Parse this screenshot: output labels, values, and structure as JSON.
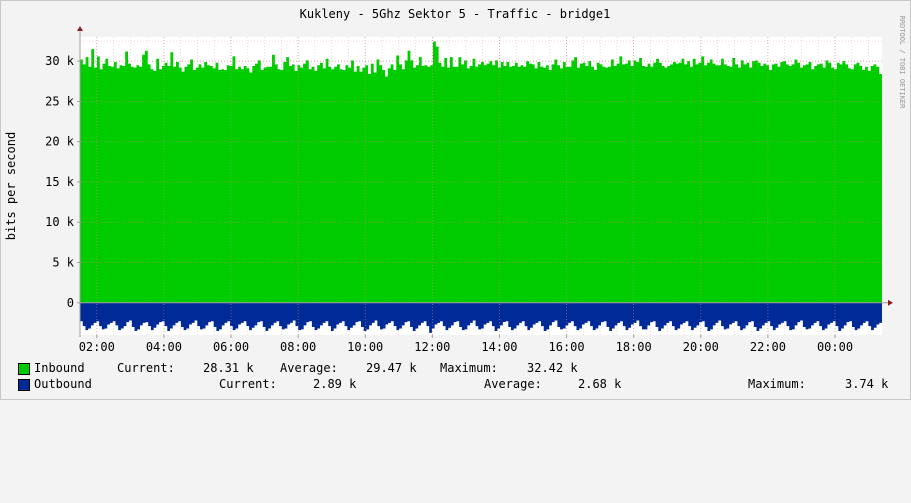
{
  "chart_data": {
    "type": "area",
    "title": "Kukleny - 5Ghz Sektor 5 - Traffic - bridge1",
    "ylabel": "bits per second",
    "watermark": "RRDTOOL / TOBI OETIKER",
    "ylim": [
      -4000,
      33000
    ],
    "yticks": [
      {
        "value": 30000,
        "label": "30 k"
      },
      {
        "value": 25000,
        "label": "25 k"
      },
      {
        "value": 20000,
        "label": "20 k"
      },
      {
        "value": 15000,
        "label": "15 k"
      },
      {
        "value": 10000,
        "label": "10 k"
      },
      {
        "value": 5000,
        "label": "5 k"
      },
      {
        "value": 0,
        "label": "0"
      }
    ],
    "xticks": [
      "02:00",
      "04:00",
      "06:00",
      "08:00",
      "10:00",
      "12:00",
      "14:00",
      "16:00",
      "18:00",
      "20:00",
      "22:00",
      "00:00"
    ],
    "xlim_hours": [
      1.5,
      25.4
    ],
    "grid": true,
    "colors": {
      "inbound": "#00cc00",
      "outbound": "#002a97",
      "grid": "#e6a0a0",
      "axis": "#a0a0a0",
      "arrow": "#8b1a1a"
    },
    "series": [
      {
        "name": "Inbound",
        "note": "approx 5-minute samples, bits per second",
        "values": [
          30200,
          29600,
          30500,
          29300,
          31500,
          29200,
          30600,
          29000,
          29700,
          30300,
          29400,
          29300,
          29900,
          29100,
          29500,
          29400,
          31200,
          29700,
          29300,
          29200,
          29500,
          29300,
          30800,
          31300,
          29600,
          29000,
          28800,
          30300,
          29000,
          29400,
          29800,
          29400,
          31100,
          29300,
          29900,
          29200,
          28700,
          29300,
          29600,
          30200,
          28900,
          29200,
          29600,
          29200,
          29900,
          29500,
          29400,
          29100,
          29800,
          28900,
          29000,
          28900,
          29500,
          29400,
          30600,
          29000,
          29300,
          29000,
          29400,
          29100,
          28600,
          29400,
          29700,
          30100,
          28900,
          29200,
          29300,
          29300,
          30800,
          29600,
          29000,
          28900,
          29900,
          30500,
          29400,
          29600,
          28800,
          29500,
          29200,
          29700,
          30100,
          29000,
          29300,
          28800,
          29500,
          29800,
          29100,
          30300,
          29300,
          29000,
          29300,
          29600,
          29000,
          28900,
          29500,
          29200,
          30100,
          28700,
          29400,
          28700,
          29200,
          29500,
          28400,
          29700,
          28600,
          30200,
          29500,
          28900,
          28100,
          29100,
          29600,
          28900,
          30700,
          29600,
          29000,
          30100,
          31300,
          30100,
          29200,
          29500,
          30500,
          29400,
          29500,
          29300,
          29500,
          32420,
          31800,
          29800,
          29300,
          30400,
          29200,
          30500,
          29300,
          29300,
          30500,
          29600,
          30100,
          29100,
          29400,
          30300,
          29300,
          29600,
          29900,
          29500,
          29700,
          30000,
          29500,
          30100,
          29200,
          29900,
          29400,
          29900,
          29300,
          29400,
          29800,
          29300,
          29500,
          29300,
          30000,
          29700,
          29600,
          29100,
          29900,
          29300,
          29200,
          29500,
          28900,
          29600,
          30200,
          29500,
          29100,
          29900,
          29300,
          29300,
          30100,
          30500,
          29200,
          29700,
          29800,
          29400,
          30000,
          29300,
          28900,
          29800,
          29600,
          29300,
          29200,
          29300,
          30200,
          29400,
          29700,
          30600,
          29600,
          29700,
          30100,
          29400,
          30100,
          29900,
          30400,
          29400,
          29300,
          29700,
          29300,
          29800,
          30300,
          29800,
          29400,
          29200,
          29400,
          29600,
          29900,
          29700,
          29800,
          30300,
          29600,
          30000,
          29300,
          30300,
          29600,
          29800,
          30600,
          29500,
          29800,
          30200,
          29700,
          29500,
          29500,
          30300,
          29600,
          29400,
          29300,
          30400,
          29600,
          29200,
          30100,
          29600,
          29800,
          29200,
          30000,
          30100,
          29800,
          29400,
          29700,
          29500,
          28900,
          29600,
          29700,
          29300,
          29900,
          30000,
          29600,
          29400,
          29600,
          30200,
          29800,
          29200,
          29500,
          29600,
          29900,
          29000,
          29400,
          29600,
          29700,
          29200,
          30100,
          29800,
          29200,
          29000,
          29800,
          29600,
          30000,
          29600,
          29100,
          29000,
          29600,
          29800,
          29400,
          28900,
          29300,
          28800,
          29400,
          29600,
          29300,
          28400
        ]
      },
      {
        "name": "Outbound",
        "note": "plotted below zero, bits per second",
        "values": [
          2300,
          2900,
          3400,
          3200,
          2800,
          2500,
          2300,
          2900,
          3300,
          3200,
          2700,
          2500,
          2300,
          2800,
          3400,
          3200,
          2900,
          2400,
          2200,
          3000,
          3500,
          3300,
          2800,
          2500,
          2400,
          2900,
          3400,
          3100,
          2700,
          2400,
          2300,
          2900,
          3500,
          3200,
          2800,
          2500,
          2300,
          3000,
          3400,
          3200,
          2700,
          2500,
          2200,
          2900,
          3300,
          3200,
          2800,
          2400,
          2300,
          3000,
          3500,
          3300,
          2800,
          2500,
          2300,
          2900,
          3400,
          3200,
          2700,
          2500,
          2300,
          2900,
          3400,
          3100,
          2800,
          2400,
          2300,
          3000,
          3500,
          3200,
          2800,
          2500,
          2300,
          2900,
          3300,
          3200,
          2700,
          2500,
          2200,
          2900,
          3400,
          3300,
          2800,
          2400,
          2300,
          3000,
          3400,
          3200,
          2800,
          2500,
          2300,
          2900,
          3500,
          3200,
          2700,
          2500,
          2300,
          2900,
          3400,
          3100,
          2800,
          2400,
          2300,
          3000,
          3500,
          3300,
          2800,
          2500,
          2200,
          2900,
          3300,
          3200,
          2700,
          2500,
          2300,
          2900,
          3400,
          3200,
          2800,
          2400,
          2300,
          3000,
          3500,
          3200,
          2800,
          2500,
          2300,
          2900,
          3740,
          3200,
          2700,
          2500,
          2300,
          2900,
          3400,
          3100,
          2800,
          2400,
          2300,
          3000,
          3400,
          3300,
          2800,
          2500,
          2200,
          2900,
          3300,
          3200,
          2700,
          2500,
          2300,
          2900,
          3500,
          3200,
          2800,
          2400,
          2300,
          3000,
          3400,
          3200,
          2800,
          2500,
          2300,
          2900,
          3400,
          3100,
          2700,
          2500,
          2300,
          2900,
          3500,
          3300,
          2800,
          2400,
          2200,
          3000,
          3300,
          3200,
          2800,
          2500,
          2300,
          2900,
          3400,
          3200,
          2700,
          2500,
          2300,
          2900,
          3400,
          3200,
          2800,
          2400,
          2300,
          3000,
          3500,
          3200,
          2800,
          2500,
          2300,
          2900,
          3400,
          3100,
          2700,
          2500,
          2200,
          2900,
          3300,
          3300,
          2800,
          2400,
          2300,
          3000,
          3500,
          3200,
          2800,
          2500,
          2300,
          2900,
          3400,
          3200,
          2700,
          2500,
          2300,
          2900,
          3400,
          3100,
          2800,
          2400,
          2300,
          3000,
          3500,
          3300,
          2800,
          2500,
          2200,
          2900,
          3300,
          3200,
          2700,
          2500,
          2300,
          2900,
          3400,
          3200,
          2800,
          2400,
          2300,
          3000,
          3500,
          3200,
          2800,
          2500,
          2300,
          2900,
          3400,
          3100,
          2700,
          2500,
          2300,
          2900,
          3400,
          3300,
          2800,
          2400,
          2200,
          3000,
          3300,
          3200,
          2800,
          2500,
          2300,
          2900,
          3400,
          3200,
          2700,
          2500,
          2300,
          2900,
          3500,
          3200,
          2800,
          2400,
          2300,
          3000,
          3400,
          3200,
          2800,
          2500,
          2300,
          2900,
          3400,
          3100,
          2700,
          2500
        ]
      }
    ]
  },
  "legend": {
    "inbound": {
      "name": "Inbound",
      "current_label": "Current:",
      "current": "28.31 k",
      "average_label": "Average:",
      "average": "29.47 k",
      "maximum_label": "Maximum:",
      "maximum": "32.42 k",
      "color": "#00cc00"
    },
    "outbound": {
      "name": "Outbound",
      "current_label": "Current:",
      "current": "2.89 k",
      "average_label": "Average:",
      "average": "2.68 k",
      "maximum_label": "Maximum:",
      "maximum": "3.74 k",
      "color": "#002a97"
    }
  }
}
